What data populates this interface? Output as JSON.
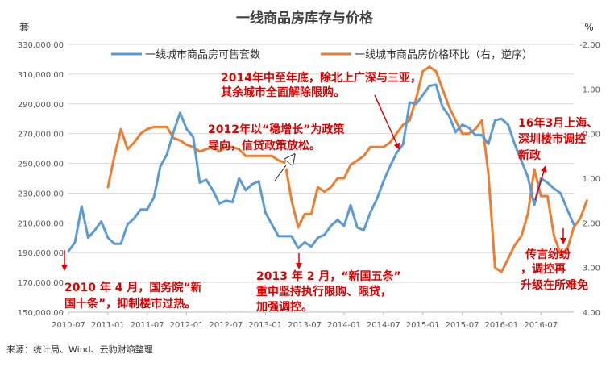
{
  "chart_data": {
    "type": "line",
    "title": "一线商品房库存与价格",
    "left_unit": "套",
    "right_unit": "%",
    "source": "来源：统计局、Wind、云豹财熵整理",
    "colors": {
      "blue": "#5b9bd5",
      "orange": "#ed7d31",
      "annotation": "#e00000",
      "arrow": "#e00000",
      "callout_arrow": "#ffffff"
    },
    "left_axis": {
      "min": 150000,
      "max": 330000,
      "step": 20000,
      "tick_labels": [
        "150,000.00",
        "170,000.00",
        "190,000.00",
        "210,000.00",
        "230,000.00",
        "250,000.00",
        "270,000.00",
        "290,000.00",
        "310,000.00",
        "330,000.00"
      ]
    },
    "right_axis": {
      "min": -2.0,
      "max": 4.0,
      "inverted": true,
      "tick_values": [
        -2,
        -1,
        0,
        1,
        2,
        3,
        4
      ],
      "tick_labels": [
        "-2.00",
        "-1.00",
        "0.00",
        "1.00",
        "2.00",
        "3.00",
        "4.00"
      ]
    },
    "x_axis": {
      "start": "2010-07",
      "tick_labels": [
        "2010-07",
        "2011-01",
        "2011-07",
        "2012-01",
        "2012-07",
        "2013-01",
        "2013-07",
        "2014-01",
        "2014-07",
        "2015-01",
        "2015-07",
        "2016-01",
        "2016-07"
      ]
    },
    "series": [
      {
        "name": "一线城市商品房可售套数",
        "axis": "left",
        "color": "#5b9bd5",
        "start_index": 0,
        "values": [
          191000,
          197000,
          221000,
          200000,
          205000,
          211000,
          200000,
          196000,
          196000,
          209000,
          213000,
          219000,
          219000,
          227000,
          248000,
          256000,
          271000,
          284000,
          273000,
          268000,
          237000,
          239000,
          232000,
          223000,
          225000,
          224000,
          240000,
          232000,
          236000,
          238000,
          217000,
          209000,
          201000,
          201000,
          201000,
          193000,
          197000,
          194000,
          200000,
          202000,
          208000,
          212000,
          208000,
          222000,
          207000,
          205000,
          217000,
          226000,
          238000,
          248000,
          257000,
          263000,
          291000,
          290000,
          296000,
          302000,
          303000,
          288000,
          282000,
          271000,
          276000,
          274000,
          269000,
          269000,
          263000,
          279000,
          280000,
          276000,
          263000,
          252000,
          241000,
          222000,
          240000,
          237000,
          233000,
          230000,
          219000,
          209000
        ]
      },
      {
        "name": "一线城市商品房价格环比（右，逆序）",
        "axis": "right",
        "color": "#ed7d31",
        "start_index": 6,
        "values": [
          1.2,
          0.5,
          -0.1,
          0.35,
          0.2,
          0.0,
          -0.1,
          -0.15,
          -0.15,
          -0.15,
          0.1,
          0.15,
          0.25,
          0.3,
          0.4,
          0.35,
          0.3,
          0.4,
          0.3,
          0.3,
          0.35,
          0.5,
          0.5,
          0.5,
          0.5,
          0.5,
          0.6,
          0.65,
          1.5,
          2.1,
          1.8,
          1.8,
          1.2,
          1.3,
          1.2,
          1.0,
          1.0,
          0.7,
          0.6,
          0.5,
          0.3,
          0.3,
          0.3,
          0.2,
          0.0,
          -0.2,
          -0.3,
          -0.8,
          -1.4,
          -1.5,
          -1.4,
          -1.0,
          -0.6,
          -0.3,
          0.0,
          0.0,
          -0.1,
          -0.3,
          0.9,
          3.0,
          3.1,
          2.8,
          2.5,
          2.3,
          1.8,
          0.8,
          1.4,
          1.4,
          2.3,
          2.7,
          2.6,
          2.1,
          1.9,
          1.5
        ]
      }
    ],
    "annotations": [
      {
        "lines": [
          "2014年中至年底，除北上广深与三亚，",
          "其余城市全面解除限购。"
        ]
      },
      {
        "lines": [
          "2012年以“稳增长”为政策",
          "导向，信贷政策放松。"
        ]
      },
      {
        "lines": [
          "16年3月上海、",
          "深圳楼市调控",
          "新政"
        ]
      },
      {
        "lines": [
          "2010 年 4 月，国务院“新",
          "国十条”，抑制楼市过热。"
        ]
      },
      {
        "lines": [
          "2013 年 2 月，“新国五条”",
          "重申坚持执行限购、限贷，",
          "加强调控。"
        ]
      },
      {
        "lines": [
          "传言纷纷",
          "，调控再",
          "升级在所难免"
        ]
      }
    ]
  }
}
